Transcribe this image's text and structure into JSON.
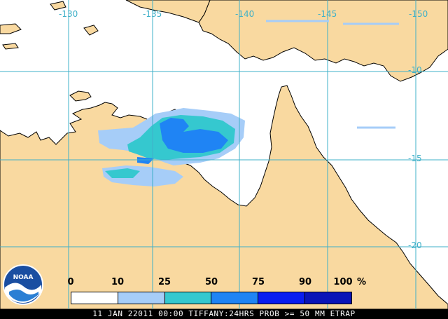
{
  "colors": {
    "land": "#f9d9a0",
    "ocean": "#ffffff",
    "coastline": "#000000",
    "gridline": "#3fb0c8",
    "ticks_label": "#3fb0c8"
  },
  "grid": {
    "lon_labels": [
      "-130",
      "-135",
      "-140",
      "-145",
      "-150"
    ],
    "lat_labels": [
      "-10",
      "-15",
      "-20"
    ]
  },
  "legend": {
    "ticks": [
      "0",
      "10",
      "25",
      "50",
      "75",
      "90",
      "100"
    ],
    "unit": "%",
    "colors": [
      "#ffffff",
      "#a6cdf8",
      "#35c8cf",
      "#1f84f4",
      "#0a1df0",
      "#0a14b8"
    ]
  },
  "logo": {
    "text": "NOAA",
    "icon": "noaa-logo"
  },
  "caption": "11 JAN 22011 00:00 TIFFANY:24HRS PROB >= 50 MM ETRAP"
}
